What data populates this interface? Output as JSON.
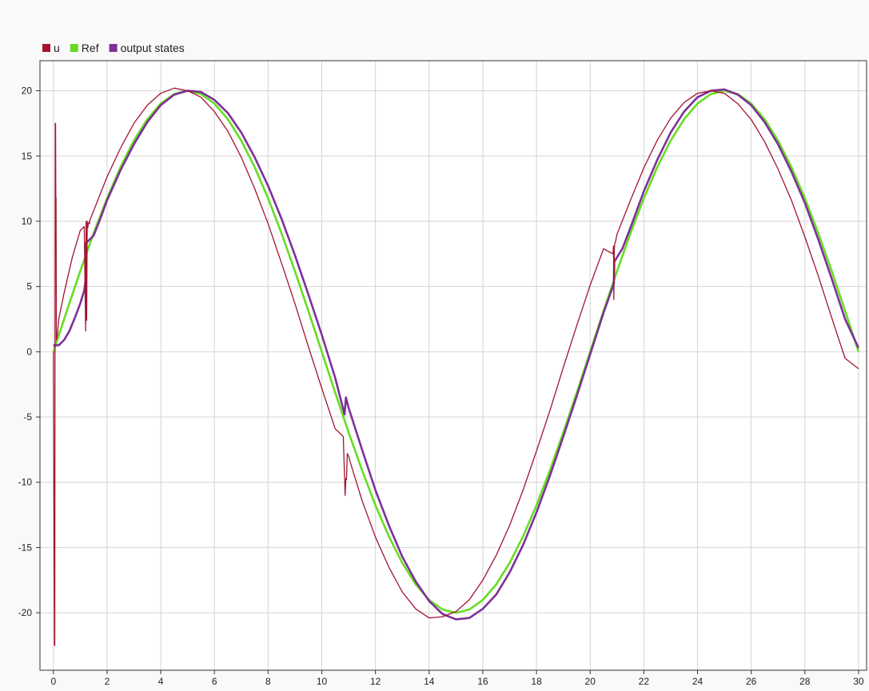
{
  "chart_data": {
    "type": "line",
    "legend": {
      "placement": "top-left",
      "entries": [
        {
          "name": "u",
          "color": "#a2142f"
        },
        {
          "name": "Ref",
          "color": "#66dd22"
        },
        {
          "name": "output states",
          "color": "#7e3098"
        }
      ]
    },
    "xlim": [
      -0.5,
      30.3
    ],
    "ylim": [
      -24.4,
      22.3
    ],
    "xticks": [
      0,
      2,
      4,
      6,
      8,
      10,
      12,
      14,
      16,
      18,
      20,
      22,
      24,
      26,
      28,
      30
    ],
    "yticks": [
      20,
      15,
      10,
      5,
      0,
      -5,
      -10,
      -15,
      -20
    ],
    "xticklabels": [
      "0",
      "2",
      "4",
      "6",
      "8",
      "10",
      "12",
      "14",
      "16",
      "18",
      "20",
      "22",
      "24",
      "26",
      "28",
      "30"
    ],
    "yticklabels": [
      "20",
      "15",
      "10",
      "5",
      "0",
      "-5",
      "-10",
      "-15",
      "-20"
    ],
    "grid": true,
    "series": [
      {
        "name": "Ref",
        "color": "#66dd22",
        "x": [
          0,
          0.5,
          1,
          1.5,
          2,
          2.5,
          3,
          3.5,
          4,
          4.5,
          5,
          5.5,
          6,
          6.5,
          7,
          7.5,
          8,
          8.5,
          9,
          9.5,
          10,
          10.5,
          11,
          11.5,
          12,
          12.5,
          13,
          13.5,
          14,
          14.5,
          15,
          15.5,
          16,
          16.5,
          17,
          17.5,
          18,
          18.5,
          19,
          19.5,
          20,
          20.5,
          21,
          21.5,
          22,
          22.5,
          23,
          23.5,
          24,
          24.5,
          25,
          25.5,
          26,
          26.5,
          27,
          27.5,
          28,
          28.5,
          29,
          29.5,
          30
        ],
        "values": [
          0,
          3.13,
          6.18,
          9.08,
          11.76,
          14.14,
          16.18,
          17.82,
          19.02,
          19.75,
          20,
          19.75,
          19.02,
          17.82,
          16.18,
          14.14,
          11.76,
          9.08,
          6.18,
          3.13,
          0,
          -3.13,
          -6.18,
          -9.08,
          -11.76,
          -14.14,
          -16.18,
          -17.82,
          -19.02,
          -19.75,
          -20,
          -19.75,
          -19.02,
          -17.82,
          -16.18,
          -14.14,
          -11.76,
          -9.08,
          -6.18,
          -3.13,
          0,
          3.13,
          6.18,
          9.08,
          11.76,
          14.14,
          16.18,
          17.82,
          19.02,
          19.75,
          20,
          19.75,
          19.02,
          17.82,
          16.18,
          14.14,
          11.76,
          9.08,
          6.18,
          3.13,
          0
        ]
      },
      {
        "name": "output states",
        "color": "#7e3098",
        "x": [
          0,
          0.2,
          0.4,
          0.6,
          0.8,
          1.0,
          1.15,
          1.2,
          1.2,
          1.21,
          1.3,
          1.5,
          1.75,
          2,
          2.5,
          3,
          3.5,
          4,
          4.5,
          5,
          5.5,
          6,
          6.5,
          7,
          7.5,
          8,
          8.5,
          9,
          9.5,
          10,
          10.5,
          10.85,
          10.9,
          11.0,
          11.5,
          12,
          12.5,
          13,
          13.5,
          14,
          14.5,
          15,
          15.5,
          16,
          16.5,
          17,
          17.5,
          18,
          18.5,
          19,
          19.5,
          20,
          20.5,
          20.88,
          20.9,
          21.2,
          21.5,
          22,
          22.5,
          23,
          23.5,
          24,
          24.5,
          25,
          25.5,
          26,
          26.5,
          27,
          27.5,
          28,
          28.5,
          29,
          29.5,
          30
        ],
        "values": [
          0.5,
          0.5,
          0.9,
          1.6,
          2.6,
          3.7,
          4.7,
          5.5,
          8.2,
          8.3,
          8.5,
          8.9,
          10.2,
          11.6,
          13.9,
          15.9,
          17.6,
          18.9,
          19.7,
          20.0,
          19.9,
          19.3,
          18.3,
          16.8,
          14.9,
          12.7,
          10.2,
          7.4,
          4.4,
          1.3,
          -2.0,
          -4.8,
          -3.5,
          -4.3,
          -7.5,
          -10.6,
          -13.3,
          -15.7,
          -17.6,
          -19.1,
          -20.1,
          -20.5,
          -20.4,
          -19.7,
          -18.6,
          -16.9,
          -14.8,
          -12.3,
          -9.5,
          -6.5,
          -3.4,
          -0.2,
          3.0,
          5.2,
          6.9,
          7.9,
          9.5,
          12.3,
          14.7,
          16.8,
          18.4,
          19.5,
          20.0,
          20.1,
          19.7,
          18.9,
          17.6,
          15.9,
          13.8,
          11.4,
          8.6,
          5.6,
          2.5,
          0.3
        ]
      },
      {
        "name": "u",
        "color": "#a2142f",
        "x": [
          0,
          0.04,
          0.05,
          0.06,
          0.07,
          0.08,
          0.09,
          0.1,
          0.11,
          0.12,
          0.15,
          0.2,
          0.4,
          0.7,
          1.0,
          1.15,
          1.2,
          1.22,
          1.24,
          1.26,
          1.28,
          1.3,
          1.32,
          1.34,
          1.36,
          1.4,
          1.5,
          2,
          2.5,
          3,
          3.5,
          4,
          4.5,
          5,
          5.5,
          6,
          6.5,
          7,
          7.5,
          8,
          8.5,
          9,
          9.5,
          10,
          10.5,
          10.8,
          10.85,
          10.87,
          10.9,
          10.92,
          10.95,
          11.0,
          11.05,
          11.5,
          12,
          12.5,
          13,
          13.5,
          14,
          14.5,
          15,
          15.5,
          16,
          16.5,
          17,
          17.5,
          18,
          18.5,
          19,
          19.5,
          20,
          20.5,
          20.85,
          20.87,
          20.88,
          20.9,
          20.92,
          20.95,
          21.0,
          21.5,
          22,
          22.5,
          23,
          23.5,
          24,
          24.5,
          25,
          25.5,
          26,
          26.5,
          27,
          27.5,
          28,
          28.5,
          29,
          29.5,
          30
        ],
        "values": [
          0,
          -22.5,
          -22.5,
          0,
          17.5,
          17.5,
          11.8,
          11.8,
          0.9,
          1.0,
          1.3,
          2.5,
          4.5,
          7.2,
          9.3,
          9.6,
          1.6,
          10.0,
          2.4,
          10.0,
          9.5,
          9.8,
          9.9,
          9.8,
          10.1,
          10.3,
          10.8,
          13.4,
          15.6,
          17.5,
          18.9,
          19.8,
          20.2,
          20.0,
          19.5,
          18.4,
          16.9,
          14.9,
          12.5,
          9.8,
          6.8,
          3.7,
          0.4,
          -2.8,
          -5.9,
          -6.5,
          -9.6,
          -11.0,
          -9.7,
          -9.8,
          -7.8,
          -8.0,
          -8.4,
          -11.4,
          -14.2,
          -16.5,
          -18.4,
          -19.7,
          -20.4,
          -20.3,
          -19.9,
          -19.0,
          -17.5,
          -15.6,
          -13.3,
          -10.6,
          -7.6,
          -4.5,
          -1.2,
          2.0,
          5.1,
          7.9,
          7.5,
          8.1,
          4.0,
          7.9,
          8.3,
          8.5,
          9.0,
          11.6,
          14.1,
          16.2,
          17.9,
          19.1,
          19.8,
          20.0,
          19.8,
          19.0,
          17.8,
          16.1,
          14.0,
          11.6,
          8.8,
          5.8,
          2.6,
          -0.5,
          -1.3
        ]
      }
    ]
  }
}
